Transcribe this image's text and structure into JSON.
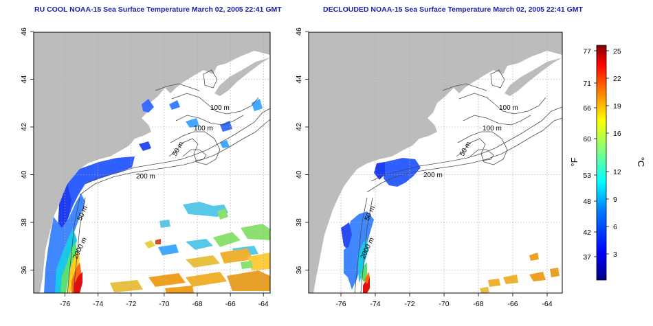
{
  "panels": [
    {
      "title": "RU COOL NOAA-15 Sea Surface Temperature March 02, 2005 22:41 GMT",
      "x_ticks": [
        "-76",
        "-74",
        "-72",
        "-70",
        "-68",
        "-66",
        "-64"
      ],
      "y_ticks": [
        "46",
        "44",
        "42",
        "40",
        "38",
        "36"
      ],
      "contour_labels": [
        "100 m",
        "100 m",
        "50 m",
        "200 m",
        "50 m",
        "2000 m"
      ]
    },
    {
      "title": "DECLOUDED NOAA-15 Sea Surface Temperature March 02, 2005 22:41 GMT",
      "x_ticks": [
        "-76",
        "-74",
        "-72",
        "-70",
        "-68",
        "-66",
        "-64"
      ],
      "y_ticks": [
        "46",
        "44",
        "42",
        "40",
        "38",
        "36"
      ],
      "contour_labels": [
        "100 m",
        "100 m",
        "50 m",
        "200 m",
        "50 m",
        "2000 m"
      ]
    }
  ],
  "colorbar": {
    "fahrenheit_label": "°F",
    "celsius_label": "°C",
    "fahrenheit_ticks": [
      "77",
      "71",
      "66",
      "60",
      "53",
      "48",
      "42",
      "37"
    ],
    "celsius_ticks": [
      "25",
      "22",
      "19",
      "16",
      "12",
      "9",
      "6",
      "3"
    ],
    "colors": [
      "#00007f",
      "#0000ff",
      "#007fff",
      "#00ffff",
      "#7fff7f",
      "#ffff00",
      "#ff7f00",
      "#ff0000",
      "#7f0000"
    ]
  },
  "colors": {
    "land": "#bcbcbc",
    "ocean_no_data": "#ffffff",
    "contour": "#4a4a4a",
    "grid": "#aaaaaa",
    "title": "#1a1aa8"
  }
}
